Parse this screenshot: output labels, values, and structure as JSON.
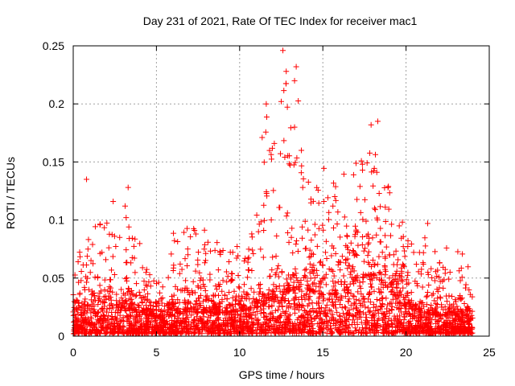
{
  "chart_data": {
    "type": "scatter",
    "title": "Day 231 of 2021, Rate Of TEC Index for receiver mac1",
    "xlabel": "GPS time / hours",
    "ylabel": "ROTI / TECUs",
    "xlim": [
      0,
      25
    ],
    "ylim": [
      0,
      0.25
    ],
    "xticks": [
      "0",
      "5",
      "10",
      "15",
      "20",
      "25"
    ],
    "yticks": [
      "0",
      "0.05",
      "0.1",
      "0.15",
      "0.2",
      "0.25"
    ],
    "grid": true,
    "marker": "+",
    "color": "#ff0000",
    "x_range_observed": [
      0,
      24
    ],
    "envelope": {
      "x": [
        0,
        0.5,
        1,
        1.5,
        2,
        2.5,
        3,
        3.5,
        4,
        4.5,
        5,
        5.5,
        6,
        6.5,
        7,
        7.5,
        8,
        8.5,
        9,
        9.5,
        10,
        10.5,
        11,
        11.5,
        12,
        12.5,
        13,
        13.5,
        14,
        14.5,
        15,
        15.5,
        16,
        16.5,
        17,
        17.5,
        18,
        18.5,
        19,
        19.5,
        20,
        20.5,
        21,
        21.5,
        22,
        22.5,
        23,
        23.5,
        24
      ],
      "median": [
        0.02,
        0.022,
        0.02,
        0.02,
        0.022,
        0.025,
        0.025,
        0.022,
        0.02,
        0.018,
        0.016,
        0.016,
        0.018,
        0.02,
        0.02,
        0.02,
        0.022,
        0.02,
        0.02,
        0.02,
        0.022,
        0.022,
        0.025,
        0.028,
        0.032,
        0.035,
        0.038,
        0.04,
        0.04,
        0.038,
        0.035,
        0.035,
        0.038,
        0.042,
        0.045,
        0.05,
        0.052,
        0.048,
        0.04,
        0.03,
        0.025,
        0.022,
        0.02,
        0.018,
        0.018,
        0.018,
        0.018,
        0.015,
        0.015
      ],
      "upper": [
        0.05,
        0.08,
        0.09,
        0.1,
        0.1,
        0.11,
        0.12,
        0.09,
        0.08,
        0.06,
        0.05,
        0.05,
        0.09,
        0.09,
        0.1,
        0.09,
        0.1,
        0.09,
        0.08,
        0.08,
        0.08,
        0.09,
        0.13,
        0.2,
        0.16,
        0.23,
        0.24,
        0.21,
        0.14,
        0.12,
        0.15,
        0.13,
        0.14,
        0.14,
        0.16,
        0.15,
        0.18,
        0.18,
        0.13,
        0.11,
        0.09,
        0.08,
        0.09,
        0.07,
        0.08,
        0.08,
        0.08,
        0.08,
        0.04
      ]
    },
    "outliers": [
      {
        "x": 0.8,
        "y": 0.135
      },
      {
        "x": 12.6,
        "y": 0.246
      },
      {
        "x": 12.8,
        "y": 0.228
      },
      {
        "x": 13.4,
        "y": 0.232
      },
      {
        "x": 13.3,
        "y": 0.22
      },
      {
        "x": 11.6,
        "y": 0.2
      },
      {
        "x": 12.5,
        "y": 0.202
      },
      {
        "x": 13.3,
        "y": 0.18
      },
      {
        "x": 17.9,
        "y": 0.182
      },
      {
        "x": 18.3,
        "y": 0.185
      },
      {
        "x": 21.3,
        "y": 0.097
      },
      {
        "x": 3.3,
        "y": 0.128
      },
      {
        "x": 2.4,
        "y": 0.116
      }
    ]
  }
}
